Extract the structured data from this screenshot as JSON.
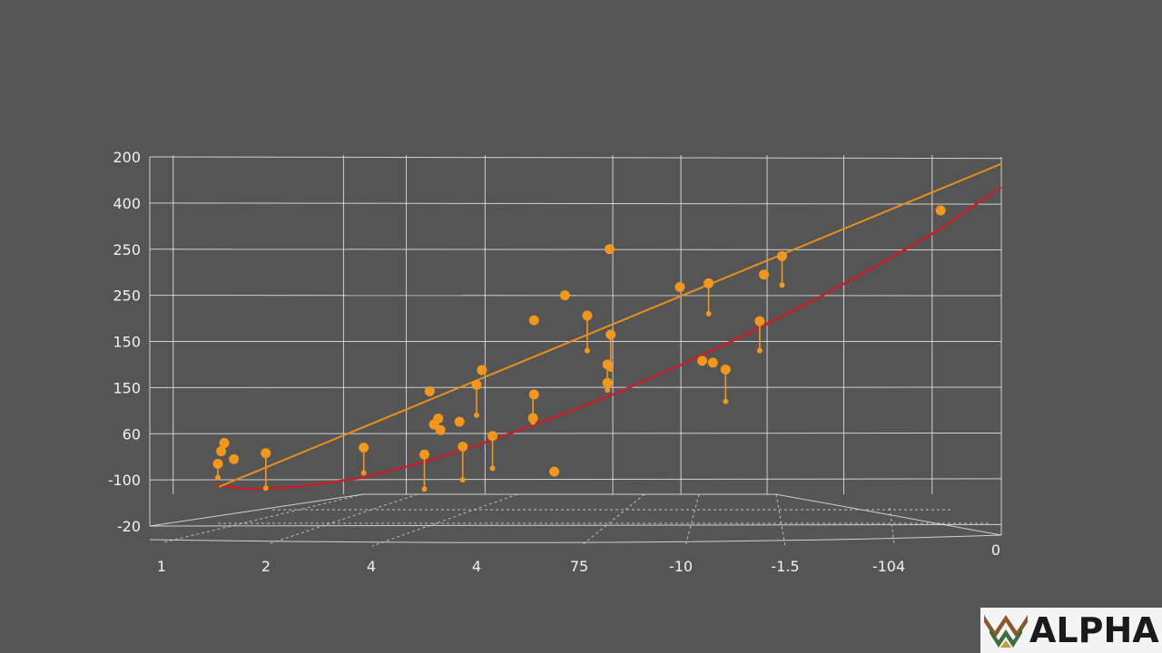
{
  "chart_data": {
    "type": "scatter",
    "y_tick_labels": [
      "200",
      "400",
      "250",
      "250",
      "150",
      "150",
      "60",
      "-100",
      "-20"
    ],
    "x_tick_labels": [
      "1",
      "2",
      "4",
      "4",
      "75",
      "-10",
      "-1.5",
      "-104",
      "0"
    ],
    "x_tick_positions": [
      0,
      1,
      2,
      3,
      4,
      5,
      6,
      7,
      8
    ],
    "xlim": [
      0,
      8
    ],
    "ylim": [
      0,
      8
    ],
    "y_tick_positions": [
      8,
      7,
      6,
      5,
      4,
      3,
      2,
      1,
      0
    ],
    "grid": true,
    "colors": {
      "points": "#f2961c",
      "fit_line": "#e8901a",
      "curve": "#c4202a",
      "background": "#555555"
    },
    "points": [
      {
        "x": 0.64,
        "y": 1.35
      },
      {
        "x": 0.67,
        "y": 1.62
      },
      {
        "x": 0.7,
        "y": 1.8
      },
      {
        "x": 0.79,
        "y": 1.45
      },
      {
        "x": 1.09,
        "y": 1.58
      },
      {
        "x": 2.01,
        "y": 1.7
      },
      {
        "x": 2.58,
        "y": 1.55
      },
      {
        "x": 2.63,
        "y": 2.92
      },
      {
        "x": 2.67,
        "y": 2.2
      },
      {
        "x": 2.71,
        "y": 2.33
      },
      {
        "x": 2.73,
        "y": 2.08
      },
      {
        "x": 2.91,
        "y": 2.26
      },
      {
        "x": 2.94,
        "y": 1.72
      },
      {
        "x": 3.07,
        "y": 3.06
      },
      {
        "x": 3.12,
        "y": 3.38
      },
      {
        "x": 3.22,
        "y": 1.95
      },
      {
        "x": 3.6,
        "y": 2.34
      },
      {
        "x": 3.61,
        "y": 2.85
      },
      {
        "x": 3.61,
        "y": 4.46
      },
      {
        "x": 3.8,
        "y": 1.18
      },
      {
        "x": 3.9,
        "y": 5.0
      },
      {
        "x": 4.11,
        "y": 4.56
      },
      {
        "x": 4.3,
        "y": 3.5
      },
      {
        "x": 4.3,
        "y": 3.1
      },
      {
        "x": 4.32,
        "y": 6.0
      },
      {
        "x": 4.33,
        "y": 4.15
      },
      {
        "x": 4.98,
        "y": 5.18
      },
      {
        "x": 5.25,
        "y": 5.26
      },
      {
        "x": 5.19,
        "y": 3.58
      },
      {
        "x": 5.29,
        "y": 3.54
      },
      {
        "x": 5.41,
        "y": 3.39
      },
      {
        "x": 5.73,
        "y": 4.44
      },
      {
        "x": 5.77,
        "y": 5.45
      },
      {
        "x": 5.94,
        "y": 5.85
      },
      {
        "x": 7.43,
        "y": 6.84
      }
    ],
    "stems": [
      {
        "x": 0.64,
        "y0": 1.35,
        "y1": 1.05
      },
      {
        "x": 1.09,
        "y0": 1.58,
        "y1": 0.82
      },
      {
        "x": 2.01,
        "y0": 1.7,
        "y1": 1.15
      },
      {
        "x": 2.58,
        "y0": 1.55,
        "y1": 0.8
      },
      {
        "x": 2.94,
        "y0": 1.72,
        "y1": 1.0
      },
      {
        "x": 3.07,
        "y0": 3.06,
        "y1": 2.4
      },
      {
        "x": 3.22,
        "y0": 1.95,
        "y1": 1.25
      },
      {
        "x": 3.6,
        "y0": 2.85,
        "y1": 2.25
      },
      {
        "x": 4.11,
        "y0": 4.56,
        "y1": 3.8
      },
      {
        "x": 4.3,
        "y0": 3.5,
        "y1": 2.95
      },
      {
        "x": 5.25,
        "y0": 5.26,
        "y1": 4.6
      },
      {
        "x": 5.41,
        "y0": 3.39,
        "y1": 2.7
      },
      {
        "x": 5.73,
        "y0": 4.44,
        "y1": 3.8
      },
      {
        "x": 5.94,
        "y0": 5.85,
        "y1": 5.22
      },
      {
        "x": 4.33,
        "y0": 4.15,
        "y1": 3.4
      }
    ],
    "fit_line": [
      {
        "x": 0.65,
        "y": 0.85
      },
      {
        "x": 8.0,
        "y": 7.85
      }
    ],
    "curve": [
      {
        "x": 0.63,
        "y": 0.88
      },
      {
        "x": 0.95,
        "y": 0.8
      },
      {
        "x": 1.4,
        "y": 0.85
      },
      {
        "x": 2.0,
        "y": 1.05
      },
      {
        "x": 2.6,
        "y": 1.4
      },
      {
        "x": 3.2,
        "y": 1.85
      },
      {
        "x": 3.8,
        "y": 2.35
      },
      {
        "x": 4.4,
        "y": 2.9
      },
      {
        "x": 5.0,
        "y": 3.5
      },
      {
        "x": 5.6,
        "y": 4.15
      },
      {
        "x": 6.2,
        "y": 4.85
      },
      {
        "x": 6.8,
        "y": 5.6
      },
      {
        "x": 7.4,
        "y": 6.4
      },
      {
        "x": 8.0,
        "y": 7.35
      }
    ]
  },
  "logo": {
    "text": "ALPHA"
  }
}
